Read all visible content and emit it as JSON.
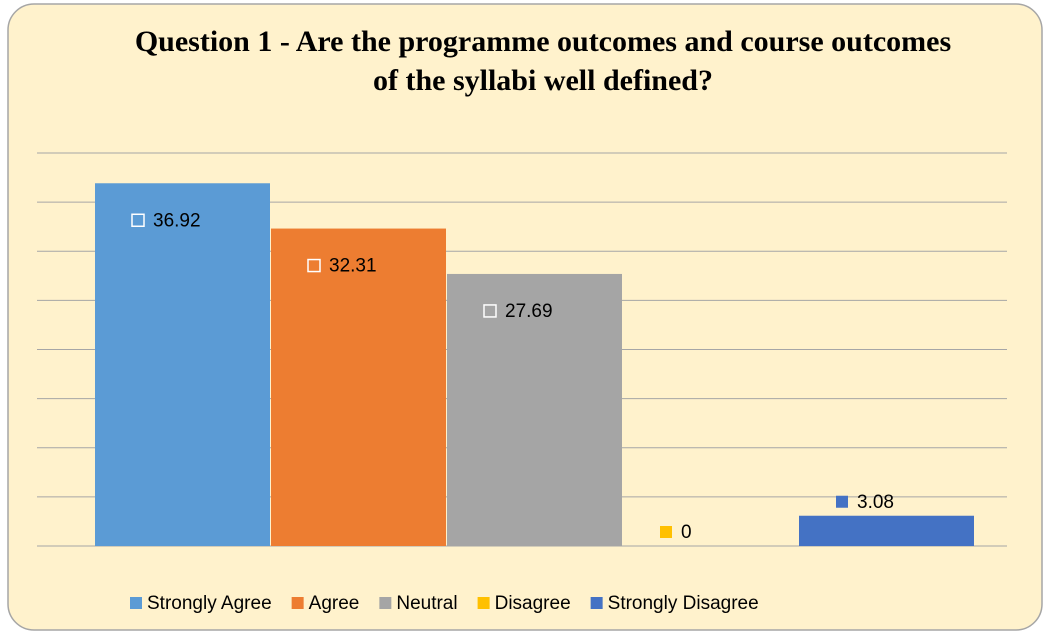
{
  "chart_data": {
    "type": "bar",
    "title": "Question 1 - Are the programme outcomes and course outcomes of the syllabi well defined?",
    "categories": [
      "Strongly Agree",
      "Agree",
      "Neutral",
      "Disagree",
      "Strongly Disagree"
    ],
    "values": [
      36.92,
      32.31,
      27.69,
      0,
      3.08
    ],
    "colors": [
      "#5b9bd5",
      "#ed7d31",
      "#a5a5a5",
      "#ffc000",
      "#4472c4"
    ],
    "ylim": [
      0,
      40
    ],
    "yticks": [
      0,
      5,
      10,
      15,
      20,
      25,
      30,
      35,
      40
    ],
    "grid": true,
    "legend": "bottom"
  }
}
